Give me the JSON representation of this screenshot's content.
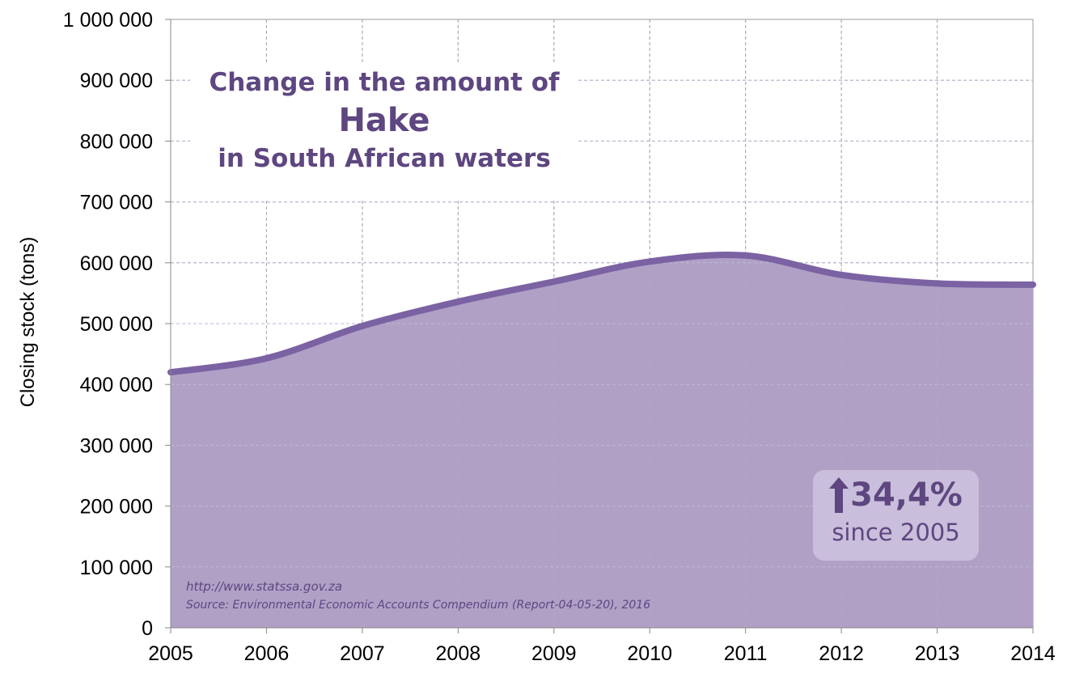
{
  "chart_data": {
    "type": "area",
    "title": [
      "Change in the amount of",
      "Hake",
      "in South African waters"
    ],
    "xlabel": "",
    "ylabel": "Closing stock (tons)",
    "x": [
      2005,
      2006,
      2007,
      2008,
      2009,
      2010,
      2011,
      2012,
      2013,
      2014
    ],
    "series": [
      {
        "name": "Hake closing stock",
        "values": [
          420000,
          443000,
          496000,
          536000,
          569000,
          602000,
          612000,
          580000,
          566000,
          564000
        ]
      }
    ],
    "ylim": [
      0,
      1000000
    ],
    "xlim": [
      2005,
      2014
    ],
    "yticks": [
      "0",
      "100 000",
      "200 000",
      "300 000",
      "400 000",
      "500 000",
      "600 000",
      "700 000",
      "800 000",
      "900 000",
      "1 000 000"
    ],
    "xticks": [
      "2005",
      "2006",
      "2007",
      "2008",
      "2009",
      "2010",
      "2011",
      "2012",
      "2013",
      "2014"
    ],
    "grid": true,
    "annotation": {
      "value": "34,4%",
      "subtitle": "since 2005",
      "icon": "arrow-up-icon"
    },
    "source_url": "http://www.statssa.gov.za",
    "source": "Source: Environmental Economic Accounts Compendium (Report-04-05-20), 2016",
    "colors": {
      "fill": "#b0a0c6",
      "line": "#7b62a3",
      "text": "#5e4680",
      "badge": "#c9bedb"
    }
  }
}
